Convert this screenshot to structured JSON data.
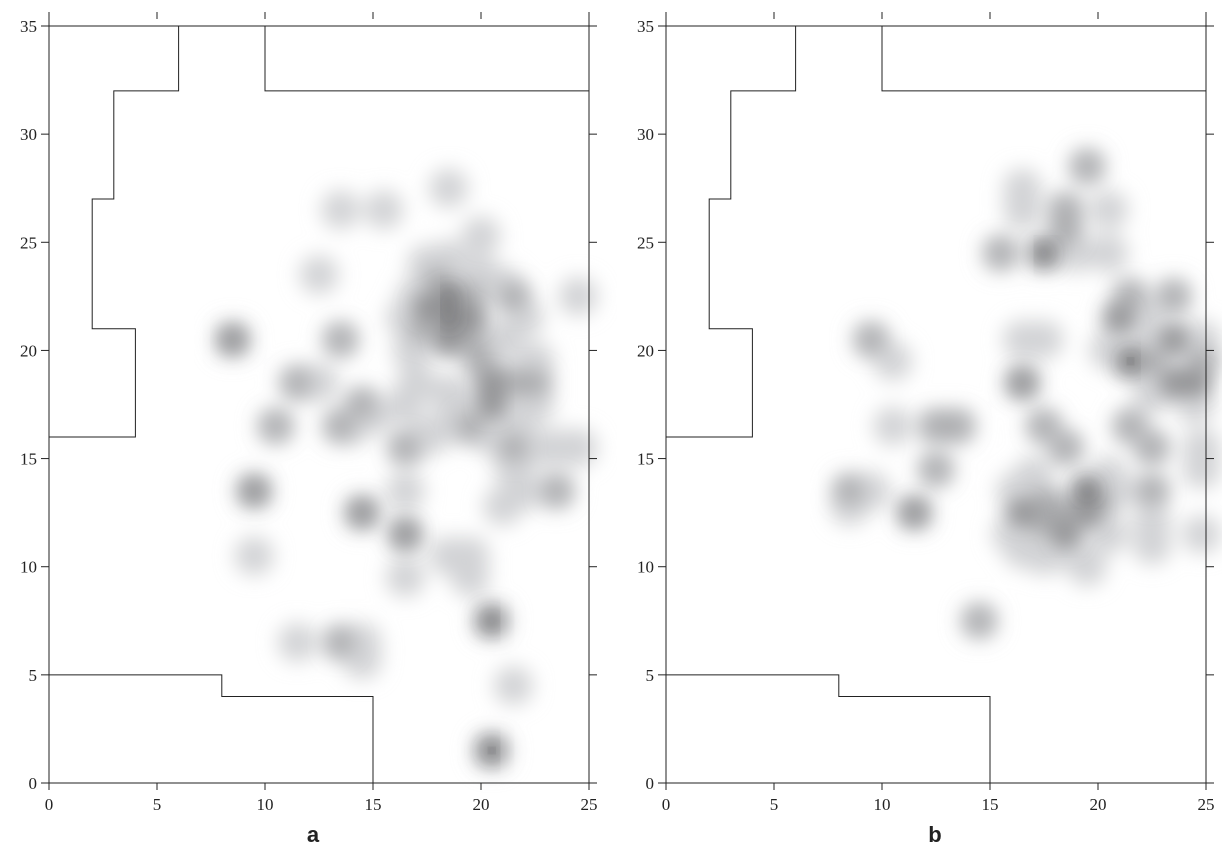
{
  "chart_data": [
    {
      "type": "contour",
      "panel_label": "a",
      "xlim": [
        0,
        25
      ],
      "ylim": [
        0,
        35
      ],
      "x_ticks": [
        0,
        5,
        10,
        15,
        20,
        25
      ],
      "y_ticks": [
        0,
        5,
        10,
        15,
        20,
        25,
        30,
        35
      ],
      "x_tick_labels": [
        "0",
        "5",
        "10",
        "15",
        "20",
        "25"
      ],
      "y_tick_labels": [
        "0",
        "5",
        "10",
        "15",
        "20",
        "25",
        "30",
        "35"
      ],
      "title": "",
      "xlabel": "",
      "ylabel": "",
      "colors": {
        "level1": "#d2d3d5",
        "level2": "#a5a6a8",
        "level3": "#7b7c7e",
        "level4": "#48494b",
        "level5": "#111111",
        "boundary": "#222222"
      },
      "boundaries": [
        [
          [
            0,
            16
          ],
          [
            4,
            16
          ],
          [
            4,
            21
          ],
          [
            2,
            21
          ],
          [
            2,
            27
          ],
          [
            3,
            27
          ],
          [
            3,
            32
          ],
          [
            6,
            32
          ],
          [
            6,
            35
          ]
        ],
        [
          [
            10,
            35
          ],
          [
            10,
            32
          ],
          [
            25,
            32
          ]
        ],
        [
          [
            0,
            5
          ],
          [
            8,
            5
          ],
          [
            8,
            4
          ],
          [
            15,
            4
          ],
          [
            15,
            0
          ]
        ]
      ],
      "density_points": [
        {
          "x": 18.5,
          "y": 22.5,
          "level": 4
        },
        {
          "x": 18.5,
          "y": 21.5,
          "level": 4
        },
        {
          "x": 18.5,
          "y": 20.5,
          "level": 3
        },
        {
          "x": 17.5,
          "y": 22.0,
          "level": 3
        },
        {
          "x": 19.5,
          "y": 21.5,
          "level": 3
        },
        {
          "x": 18.0,
          "y": 23.2,
          "level": 2
        },
        {
          "x": 17.3,
          "y": 21.0,
          "level": 2
        },
        {
          "x": 19.5,
          "y": 22.5,
          "level": 2
        },
        {
          "x": 19.5,
          "y": 20.5,
          "level": 2
        },
        {
          "x": 20.0,
          "y": 19.5,
          "level": 2
        },
        {
          "x": 20.5,
          "y": 18.5,
          "level": 3
        },
        {
          "x": 20.5,
          "y": 17.5,
          "level": 3
        },
        {
          "x": 21.5,
          "y": 18.5,
          "level": 2
        },
        {
          "x": 22.5,
          "y": 18.5,
          "level": 2
        },
        {
          "x": 21.5,
          "y": 22.5,
          "level": 2
        },
        {
          "x": 21.5,
          "y": 15.5,
          "level": 2
        },
        {
          "x": 19.5,
          "y": 16.5,
          "level": 2
        },
        {
          "x": 16.5,
          "y": 15.5,
          "level": 2
        },
        {
          "x": 17.5,
          "y": 24.0,
          "level": 1
        },
        {
          "x": 18.5,
          "y": 24.2,
          "level": 1
        },
        {
          "x": 17.0,
          "y": 22.5,
          "level": 1
        },
        {
          "x": 16.5,
          "y": 21.5,
          "level": 1
        },
        {
          "x": 16.8,
          "y": 20.0,
          "level": 1
        },
        {
          "x": 17.0,
          "y": 18.5,
          "level": 1
        },
        {
          "x": 16.5,
          "y": 17.5,
          "level": 1
        },
        {
          "x": 17.5,
          "y": 16.0,
          "level": 1
        },
        {
          "x": 18.5,
          "y": 18.0,
          "level": 1
        },
        {
          "x": 18.5,
          "y": 16.5,
          "level": 1
        },
        {
          "x": 19.5,
          "y": 17.5,
          "level": 1
        },
        {
          "x": 20.5,
          "y": 16.0,
          "level": 1
        },
        {
          "x": 21.5,
          "y": 16.5,
          "level": 1
        },
        {
          "x": 22.5,
          "y": 17.5,
          "level": 1
        },
        {
          "x": 22.5,
          "y": 19.5,
          "level": 1
        },
        {
          "x": 21.0,
          "y": 20.5,
          "level": 1
        },
        {
          "x": 21.0,
          "y": 23.0,
          "level": 1
        },
        {
          "x": 20.0,
          "y": 23.5,
          "level": 1
        },
        {
          "x": 22.0,
          "y": 21.5,
          "level": 1
        },
        {
          "x": 22.5,
          "y": 15.5,
          "level": 1
        },
        {
          "x": 23.5,
          "y": 15.5,
          "level": 1
        },
        {
          "x": 24.5,
          "y": 15.5,
          "level": 1
        },
        {
          "x": 24.5,
          "y": 22.5,
          "level": 1
        },
        {
          "x": 21.5,
          "y": 14.5,
          "level": 1
        },
        {
          "x": 22.0,
          "y": 13.5,
          "level": 1
        },
        {
          "x": 23.5,
          "y": 13.5,
          "level": 2
        },
        {
          "x": 21.0,
          "y": 12.8,
          "level": 1
        },
        {
          "x": 20.0,
          "y": 25.3,
          "level": 1
        },
        {
          "x": 18.5,
          "y": 27.5,
          "level": 1
        },
        {
          "x": 15.5,
          "y": 26.5,
          "level": 1
        },
        {
          "x": 13.5,
          "y": 26.5,
          "level": 1
        },
        {
          "x": 12.5,
          "y": 23.5,
          "level": 1
        },
        {
          "x": 8.5,
          "y": 20.5,
          "level": 3
        },
        {
          "x": 13.5,
          "y": 20.5,
          "level": 2
        },
        {
          "x": 11.5,
          "y": 18.5,
          "level": 2
        },
        {
          "x": 12.5,
          "y": 18.5,
          "level": 1
        },
        {
          "x": 14.5,
          "y": 17.5,
          "level": 2
        },
        {
          "x": 15.0,
          "y": 17.0,
          "level": 1
        },
        {
          "x": 13.5,
          "y": 16.5,
          "level": 2
        },
        {
          "x": 14.0,
          "y": 16.5,
          "level": 1
        },
        {
          "x": 10.5,
          "y": 16.5,
          "level": 2
        },
        {
          "x": 9.5,
          "y": 13.5,
          "level": 3
        },
        {
          "x": 14.5,
          "y": 12.5,
          "level": 3
        },
        {
          "x": 16.5,
          "y": 13.5,
          "level": 1
        },
        {
          "x": 16.5,
          "y": 11.5,
          "level": 3
        },
        {
          "x": 9.5,
          "y": 10.5,
          "level": 1
        },
        {
          "x": 18.5,
          "y": 10.5,
          "level": 1
        },
        {
          "x": 19.5,
          "y": 10.5,
          "level": 1
        },
        {
          "x": 19.5,
          "y": 9.5,
          "level": 1
        },
        {
          "x": 16.5,
          "y": 9.5,
          "level": 1
        },
        {
          "x": 20.5,
          "y": 7.5,
          "level": 4
        },
        {
          "x": 11.5,
          "y": 6.5,
          "level": 1
        },
        {
          "x": 13.5,
          "y": 6.5,
          "level": 2
        },
        {
          "x": 14.5,
          "y": 6.5,
          "level": 1
        },
        {
          "x": 14.5,
          "y": 5.7,
          "level": 1
        },
        {
          "x": 21.5,
          "y": 4.5,
          "level": 1
        },
        {
          "x": 20.5,
          "y": 1.5,
          "level": 5
        }
      ]
    },
    {
      "type": "contour",
      "panel_label": "b",
      "xlim": [
        0,
        25
      ],
      "ylim": [
        0,
        35
      ],
      "x_ticks": [
        0,
        5,
        10,
        15,
        20,
        25
      ],
      "y_ticks": [
        0,
        5,
        10,
        15,
        20,
        25,
        30,
        35
      ],
      "x_tick_labels": [
        "0",
        "5",
        "10",
        "15",
        "20",
        "25"
      ],
      "y_tick_labels": [
        "0",
        "5",
        "10",
        "15",
        "20",
        "25",
        "30",
        "35"
      ],
      "title": "",
      "xlabel": "",
      "ylabel": "",
      "colors": {
        "level1": "#d2d3d5",
        "level2": "#a5a6a8",
        "level3": "#7b7c7e",
        "level4": "#48494b",
        "level5": "#111111",
        "boundary": "#222222"
      },
      "boundaries": [
        [
          [
            0,
            16
          ],
          [
            4,
            16
          ],
          [
            4,
            21
          ],
          [
            2,
            21
          ],
          [
            2,
            27
          ],
          [
            3,
            27
          ],
          [
            3,
            32
          ],
          [
            6,
            32
          ],
          [
            6,
            35
          ]
        ],
        [
          [
            10,
            35
          ],
          [
            10,
            32
          ],
          [
            25,
            32
          ]
        ],
        [
          [
            0,
            5
          ],
          [
            8,
            5
          ],
          [
            8,
            4
          ],
          [
            15,
            4
          ],
          [
            15,
            0
          ]
        ]
      ],
      "density_points": [
        {
          "x": 19.5,
          "y": 28.5,
          "level": 2
        },
        {
          "x": 20.5,
          "y": 26.5,
          "level": 1
        },
        {
          "x": 18.5,
          "y": 26.5,
          "level": 2
        },
        {
          "x": 18.5,
          "y": 25.5,
          "level": 2
        },
        {
          "x": 19.0,
          "y": 24.5,
          "level": 1
        },
        {
          "x": 17.5,
          "y": 24.5,
          "level": 4
        },
        {
          "x": 16.5,
          "y": 27.5,
          "level": 1
        },
        {
          "x": 16.5,
          "y": 26.5,
          "level": 1
        },
        {
          "x": 15.5,
          "y": 24.5,
          "level": 2
        },
        {
          "x": 20.5,
          "y": 24.5,
          "level": 1
        },
        {
          "x": 21.5,
          "y": 22.5,
          "level": 2
        },
        {
          "x": 21.0,
          "y": 21.5,
          "level": 3
        },
        {
          "x": 22.0,
          "y": 21.8,
          "level": 1
        },
        {
          "x": 23.5,
          "y": 22.5,
          "level": 2
        },
        {
          "x": 21.5,
          "y": 19.5,
          "level": 5
        },
        {
          "x": 22.5,
          "y": 19.5,
          "level": 2
        },
        {
          "x": 23.5,
          "y": 20.5,
          "level": 3
        },
        {
          "x": 23.5,
          "y": 18.5,
          "level": 3
        },
        {
          "x": 24.5,
          "y": 18.5,
          "level": 3
        },
        {
          "x": 24.8,
          "y": 19.5,
          "level": 2
        },
        {
          "x": 20.5,
          "y": 20.0,
          "level": 1
        },
        {
          "x": 22.5,
          "y": 20.5,
          "level": 1
        },
        {
          "x": 22.5,
          "y": 18.0,
          "level": 1
        },
        {
          "x": 24.8,
          "y": 20.5,
          "level": 1
        },
        {
          "x": 24.5,
          "y": 17.5,
          "level": 1
        },
        {
          "x": 16.5,
          "y": 20.5,
          "level": 1
        },
        {
          "x": 17.5,
          "y": 20.5,
          "level": 1
        },
        {
          "x": 16.5,
          "y": 18.5,
          "level": 3
        },
        {
          "x": 17.5,
          "y": 16.5,
          "level": 2
        },
        {
          "x": 18.5,
          "y": 15.5,
          "level": 2
        },
        {
          "x": 21.5,
          "y": 16.5,
          "level": 2
        },
        {
          "x": 22.5,
          "y": 15.5,
          "level": 2
        },
        {
          "x": 24.8,
          "y": 15.5,
          "level": 1
        },
        {
          "x": 24.8,
          "y": 14.5,
          "level": 1
        },
        {
          "x": 22.5,
          "y": 13.5,
          "level": 2
        },
        {
          "x": 22.5,
          "y": 12.0,
          "level": 1
        },
        {
          "x": 22.5,
          "y": 11.0,
          "level": 1
        },
        {
          "x": 24.8,
          "y": 11.5,
          "level": 1
        },
        {
          "x": 9.5,
          "y": 20.5,
          "level": 2
        },
        {
          "x": 10.5,
          "y": 19.5,
          "level": 1
        },
        {
          "x": 10.5,
          "y": 16.5,
          "level": 1
        },
        {
          "x": 12.5,
          "y": 16.5,
          "level": 2
        },
        {
          "x": 13.5,
          "y": 16.5,
          "level": 2
        },
        {
          "x": 12.5,
          "y": 14.5,
          "level": 2
        },
        {
          "x": 8.5,
          "y": 13.5,
          "level": 2
        },
        {
          "x": 9.5,
          "y": 13.5,
          "level": 1
        },
        {
          "x": 8.5,
          "y": 12.8,
          "level": 1
        },
        {
          "x": 11.5,
          "y": 12.5,
          "level": 3
        },
        {
          "x": 14.5,
          "y": 7.5,
          "level": 2
        },
        {
          "x": 16.5,
          "y": 12.5,
          "level": 3
        },
        {
          "x": 17.5,
          "y": 13.0,
          "level": 2
        },
        {
          "x": 18.5,
          "y": 12.5,
          "level": 2
        },
        {
          "x": 18.5,
          "y": 11.5,
          "level": 3
        },
        {
          "x": 19.5,
          "y": 13.5,
          "level": 4
        },
        {
          "x": 19.5,
          "y": 12.5,
          "level": 3
        },
        {
          "x": 20.0,
          "y": 13.0,
          "level": 2
        },
        {
          "x": 17.5,
          "y": 12.0,
          "level": 2
        },
        {
          "x": 16.2,
          "y": 13.5,
          "level": 1
        },
        {
          "x": 16.0,
          "y": 11.5,
          "level": 1
        },
        {
          "x": 16.5,
          "y": 10.8,
          "level": 1
        },
        {
          "x": 17.5,
          "y": 10.5,
          "level": 1
        },
        {
          "x": 18.5,
          "y": 10.8,
          "level": 1
        },
        {
          "x": 19.5,
          "y": 10.0,
          "level": 1
        },
        {
          "x": 20.5,
          "y": 11.5,
          "level": 1
        },
        {
          "x": 20.8,
          "y": 13.5,
          "level": 1
        },
        {
          "x": 20.5,
          "y": 14.2,
          "level": 1
        },
        {
          "x": 17.0,
          "y": 14.2,
          "level": 1
        }
      ]
    }
  ]
}
